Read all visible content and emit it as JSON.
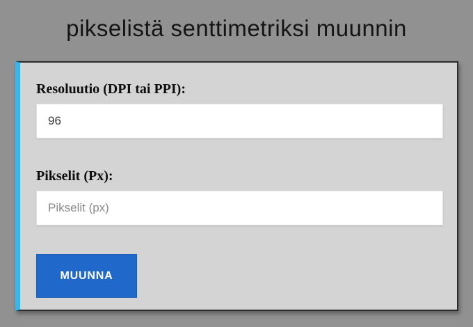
{
  "page": {
    "title": "pikselistä senttimetriksi muunnin"
  },
  "converter": {
    "resolution": {
      "label": "Resoluutio (DPI tai PPI):",
      "value": "96"
    },
    "pixels": {
      "label": "Pikselit (Px):",
      "value": "",
      "placeholder": "Pikselit (px)"
    },
    "convert_button_label": "MUUNNA"
  },
  "colors": {
    "page_background": "#919191",
    "card_background": "#d4d4d4",
    "card_accent": "#3cb4e8",
    "card_border": "#2b2b2b",
    "button_background": "#2069cb",
    "button_border": "#1a5cb4",
    "button_text": "#ffffff",
    "input_text": "#3b3b3b",
    "placeholder_text": "#8a8a8a",
    "title_text": "#141414",
    "label_text": "#0d0d0d"
  }
}
